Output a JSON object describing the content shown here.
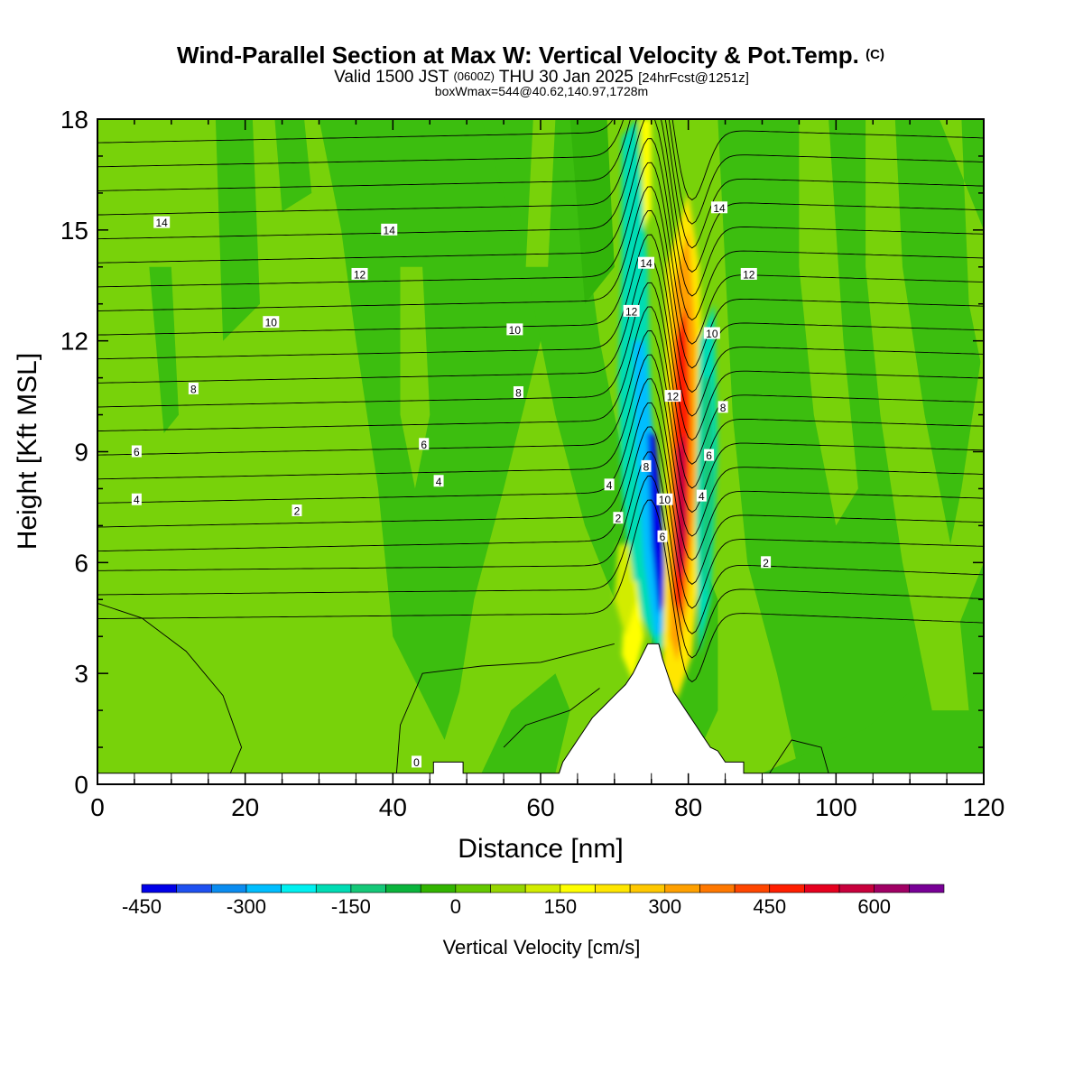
{
  "chart_data": {
    "type": "heatmap",
    "title": "Wind-Parallel Section at Max W: Vertical Velocity & Pot.Temp.",
    "title_mark": "(C)",
    "subtitle_parts": [
      "Valid 1500 JST",
      "(0600Z)",
      "THU 30 Jan 2025",
      "[24hrFcst@1251z]"
    ],
    "subtitle2": "boxWmax=544@40.62,140.97,1728m",
    "xlabel": "Distance [nm]",
    "ylabel": "Height [Kft MSL]",
    "xlim": [
      0,
      120
    ],
    "ylim": [
      0,
      18
    ],
    "x_ticks": [
      0,
      20,
      40,
      60,
      80,
      100,
      120
    ],
    "y_ticks": [
      0,
      3,
      6,
      9,
      12,
      15,
      18
    ],
    "colorbar": {
      "label": "Vertical Velocity [cm/s]",
      "levels": [
        -450,
        -400,
        -350,
        -300,
        -250,
        -200,
        -150,
        -100,
        -50,
        0,
        50,
        100,
        150,
        200,
        250,
        300,
        350,
        400,
        450,
        500,
        550,
        600,
        650,
        700
      ],
      "tick_labels": [
        -450,
        -300,
        -150,
        0,
        150,
        300,
        450,
        600
      ],
      "colors": [
        "#0000e8",
        "#1e50f0",
        "#0a8cf0",
        "#00beff",
        "#00f0f0",
        "#00dcb4",
        "#14c878",
        "#0ab43c",
        "#32b400",
        "#64c800",
        "#96d600",
        "#d2ec00",
        "#ffff00",
        "#ffe600",
        "#ffc800",
        "#ffa000",
        "#ff7800",
        "#ff4600",
        "#ff1e00",
        "#e6001e",
        "#c8003c",
        "#a00064",
        "#780096"
      ]
    },
    "terrain": [
      {
        "x": 0,
        "h": 0.3
      },
      {
        "x": 45.5,
        "h": 0.3
      },
      {
        "x": 45.5,
        "h": 0.6
      },
      {
        "x": 49.5,
        "h": 0.6
      },
      {
        "x": 49.5,
        "h": 0.3
      },
      {
        "x": 62.5,
        "h": 0.3
      },
      {
        "x": 63,
        "h": 0.6
      },
      {
        "x": 64,
        "h": 0.9
      },
      {
        "x": 65,
        "h": 1.2
      },
      {
        "x": 66,
        "h": 1.5
      },
      {
        "x": 67,
        "h": 1.8
      },
      {
        "x": 68.5,
        "h": 2.1
      },
      {
        "x": 70,
        "h": 2.4
      },
      {
        "x": 71.5,
        "h": 2.7
      },
      {
        "x": 72.5,
        "h": 3.0
      },
      {
        "x": 73.5,
        "h": 3.4
      },
      {
        "x": 74.5,
        "h": 3.8
      },
      {
        "x": 76,
        "h": 3.8
      },
      {
        "x": 76.5,
        "h": 3.4
      },
      {
        "x": 77,
        "h": 3.1
      },
      {
        "x": 77.5,
        "h": 2.8
      },
      {
        "x": 78,
        "h": 2.5
      },
      {
        "x": 79,
        "h": 2.2
      },
      {
        "x": 80,
        "h": 1.9
      },
      {
        "x": 81,
        "h": 1.6
      },
      {
        "x": 82,
        "h": 1.3
      },
      {
        "x": 83,
        "h": 1.0
      },
      {
        "x": 84,
        "h": 0.9
      },
      {
        "x": 85,
        "h": 0.6
      },
      {
        "x": 87.5,
        "h": 0.6
      },
      {
        "x": 87.5,
        "h": 0.3
      },
      {
        "x": 120,
        "h": 0.3
      }
    ],
    "theta_contour_levels": [
      0,
      2,
      4,
      6,
      8,
      10,
      12,
      14
    ],
    "contour_labels": [
      {
        "text": "14",
        "x": 8.7,
        "y": 15.2
      },
      {
        "text": "14",
        "x": 39.5,
        "y": 15.0
      },
      {
        "text": "12",
        "x": 35.5,
        "y": 13.8
      },
      {
        "text": "10",
        "x": 23.5,
        "y": 12.5
      },
      {
        "text": "10",
        "x": 56.5,
        "y": 12.3
      },
      {
        "text": "8",
        "x": 13,
        "y": 10.7
      },
      {
        "text": "8",
        "x": 57,
        "y": 10.6
      },
      {
        "text": "6",
        "x": 5.3,
        "y": 9.0
      },
      {
        "text": "6",
        "x": 44.2,
        "y": 9.2
      },
      {
        "text": "4",
        "x": 5.3,
        "y": 7.7
      },
      {
        "text": "4",
        "x": 46.2,
        "y": 8.2
      },
      {
        "text": "2",
        "x": 27,
        "y": 7.4
      },
      {
        "text": "4",
        "x": 69.3,
        "y": 8.1
      },
      {
        "text": "2",
        "x": 70.5,
        "y": 7.2
      },
      {
        "text": "14",
        "x": 74.3,
        "y": 14.1
      },
      {
        "text": "12",
        "x": 72.3,
        "y": 12.8
      },
      {
        "text": "12",
        "x": 77.9,
        "y": 10.5
      },
      {
        "text": "8",
        "x": 74.3,
        "y": 8.6
      },
      {
        "text": "10",
        "x": 76.8,
        "y": 7.7
      },
      {
        "text": "6",
        "x": 76.5,
        "y": 6.7
      },
      {
        "text": "14",
        "x": 84.2,
        "y": 15.6
      },
      {
        "text": "12",
        "x": 88.2,
        "y": 13.8
      },
      {
        "text": "10",
        "x": 83.2,
        "y": 12.2
      },
      {
        "text": "8",
        "x": 84.7,
        "y": 10.2
      },
      {
        "text": "6",
        "x": 82.8,
        "y": 8.9
      },
      {
        "text": "4",
        "x": 81.8,
        "y": 7.8
      },
      {
        "text": "2",
        "x": 90.5,
        "y": 6.0
      },
      {
        "text": "0",
        "x": 43.2,
        "y": 0.6
      }
    ]
  }
}
